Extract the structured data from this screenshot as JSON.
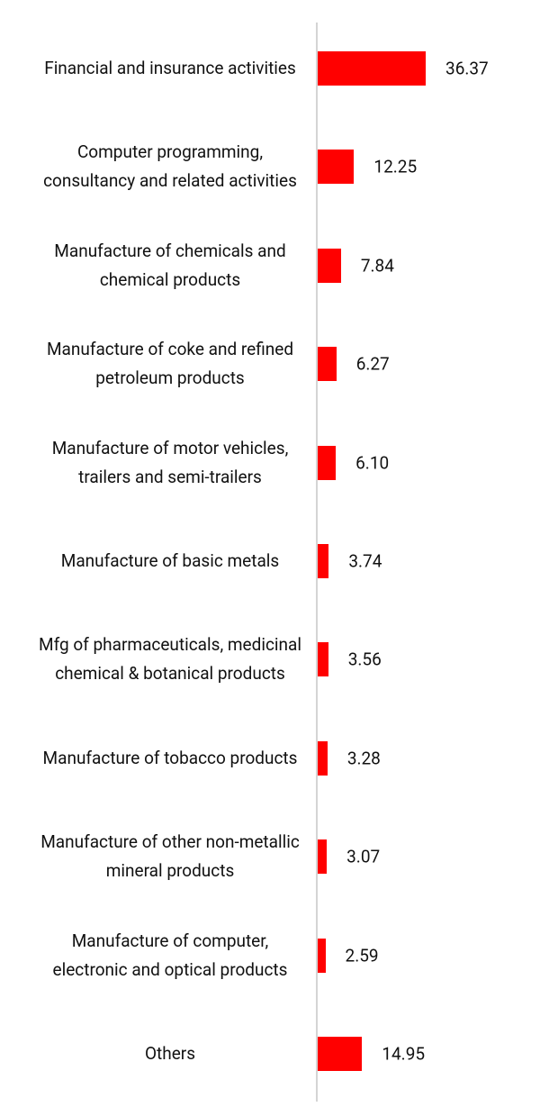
{
  "chart_data": {
    "type": "bar",
    "orientation": "horizontal",
    "categories": [
      "Financial and insurance activities",
      "Computer programming, consultancy and related activities",
      "Manufacture of chemicals and chemical products",
      "Manufacture of coke and refined petroleum products",
      "Manufacture of motor vehicles, trailers and semi-trailers",
      "Manufacture of basic metals",
      "Mfg of pharmaceuticals, medicinal chemical & botanical products",
      "Manufacture of tobacco products",
      "Manufacture of other non-metallic mineral products",
      "Manufacture of computer, electronic and optical products",
      "Others"
    ],
    "values": [
      36.37,
      12.25,
      7.84,
      6.27,
      6.1,
      3.74,
      3.56,
      3.28,
      3.07,
      2.59,
      14.95
    ],
    "value_labels": [
      "36.37",
      "12.25",
      "7.84",
      "6.27",
      "6.10",
      "3.74",
      "3.56",
      "3.28",
      "3.07",
      "2.59",
      "14.95"
    ],
    "color": "#ff0000"
  }
}
